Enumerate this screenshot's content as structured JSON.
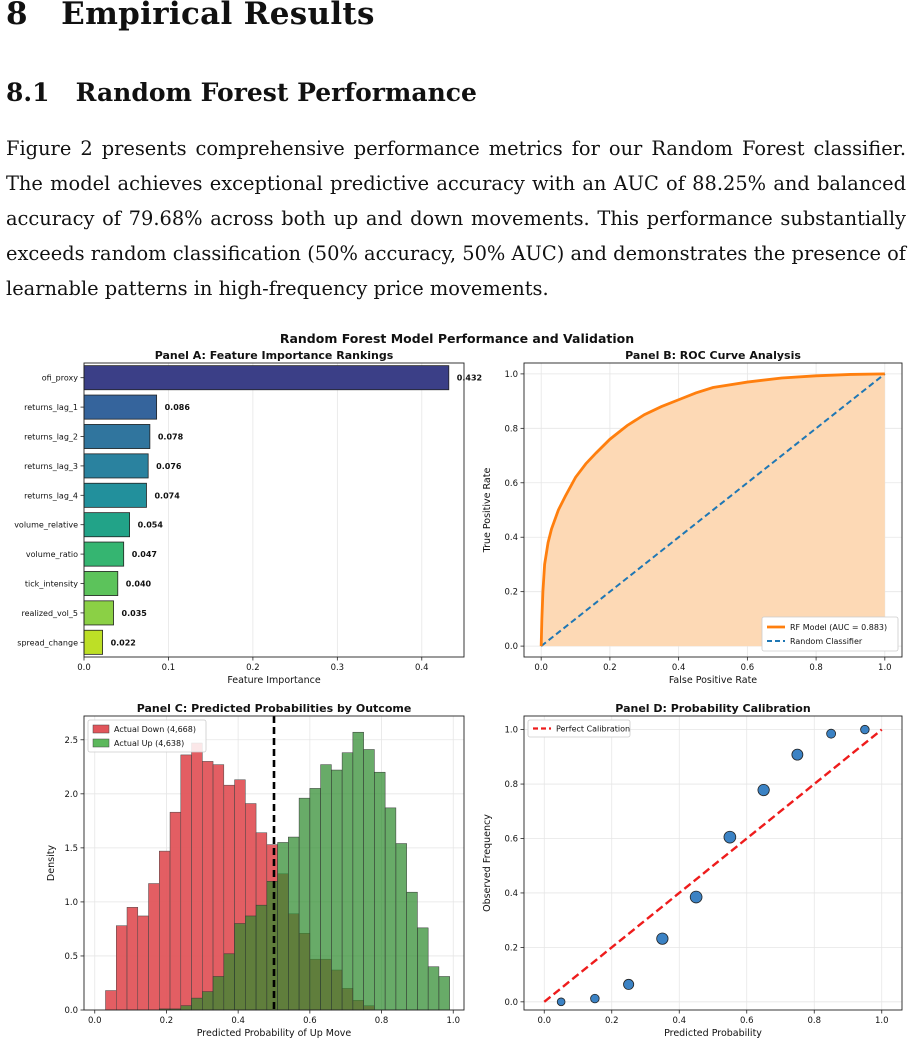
{
  "section": {
    "number": "8",
    "title": "Empirical Results"
  },
  "subsection": {
    "number": "8.1",
    "title": "Random Forest Performance"
  },
  "paragraph": "Figure 2 presents comprehensive performance metrics for our Random Forest classifier. The model achieves exceptional predictive accuracy with an AUC of 88.25% and balanced accuracy of 79.68% across both up and down movements. This performance substantially exceeds random classification (50% accuracy, 50% AUC) and demonstrates the presence of learnable patterns in high-frequency price movements.",
  "figure": {
    "suptitle": "Random Forest Model Performance and Validation"
  },
  "chart_data": [
    {
      "type": "bar",
      "orientation": "horizontal",
      "title": "Panel A: Feature Importance Rankings",
      "xlabel": "Feature Importance",
      "ylabel": "",
      "xlim": [
        0,
        0.45
      ],
      "xticks": [
        0.0,
        0.1,
        0.2,
        0.3,
        0.4
      ],
      "grid": true,
      "categories": [
        "ofi_proxy",
        "returns_lag_1",
        "returns_lag_2",
        "returns_lag_3",
        "returns_lag_4",
        "volume_relative",
        "volume_ratio",
        "tick_intensity",
        "realized_vol_5",
        "spread_change"
      ],
      "values": [
        0.432,
        0.086,
        0.078,
        0.076,
        0.074,
        0.054,
        0.047,
        0.04,
        0.035,
        0.022
      ],
      "value_labels": [
        "0.432",
        "0.086",
        "0.078",
        "0.076",
        "0.074",
        "0.054",
        "0.047",
        "0.040",
        "0.035",
        "0.022"
      ],
      "colors": [
        "#3b3f87",
        "#35649c",
        "#30759e",
        "#2a829f",
        "#22909c",
        "#22a388",
        "#35b571",
        "#5cc35b",
        "#8bd045",
        "#bddf26"
      ]
    },
    {
      "type": "line",
      "title": "Panel B: ROC Curve Analysis",
      "xlabel": "False Positive Rate",
      "ylabel": "True Positive Rate",
      "xlim": [
        0,
        1
      ],
      "ylim": [
        0,
        1
      ],
      "xticks": [
        0.0,
        0.2,
        0.4,
        0.6,
        0.8,
        1.0
      ],
      "yticks": [
        0.0,
        0.2,
        0.4,
        0.6,
        0.8,
        1.0
      ],
      "grid": true,
      "legend_position": "lower-right",
      "series": [
        {
          "name": "RF Model (AUC = 0.883)",
          "color": "#ff7f0e",
          "style": "solid",
          "fill": "#fdd9b5",
          "x": [
            0,
            0.002,
            0.005,
            0.01,
            0.02,
            0.03,
            0.05,
            0.07,
            0.1,
            0.13,
            0.16,
            0.2,
            0.25,
            0.3,
            0.35,
            0.4,
            0.45,
            0.5,
            0.6,
            0.7,
            0.8,
            0.9,
            1.0
          ],
          "y": [
            0,
            0.1,
            0.2,
            0.3,
            0.38,
            0.43,
            0.5,
            0.55,
            0.62,
            0.67,
            0.71,
            0.76,
            0.81,
            0.85,
            0.88,
            0.905,
            0.93,
            0.95,
            0.97,
            0.985,
            0.993,
            0.998,
            1.0
          ]
        },
        {
          "name": "Random Classifier",
          "color": "#1f77b4",
          "style": "dashed",
          "x": [
            0,
            1
          ],
          "y": [
            0,
            1
          ]
        }
      ]
    },
    {
      "type": "histogram",
      "title": "Panel C: Predicted Probabilities by Outcome",
      "xlabel": "Predicted Probability of Up Move",
      "ylabel": "Density",
      "xlim": [
        -0.03,
        1.03
      ],
      "ylim": [
        0,
        2.72
      ],
      "xticks": [
        0.0,
        0.2,
        0.4,
        0.6,
        0.8,
        1.0
      ],
      "yticks": [
        0.0,
        0.5,
        1.0,
        1.5,
        2.0,
        2.5
      ],
      "grid": true,
      "legend_position": "top-left",
      "bin_edges": [
        0.03,
        0.06,
        0.09,
        0.12,
        0.15,
        0.18,
        0.21,
        0.24,
        0.27,
        0.3,
        0.33,
        0.36,
        0.39,
        0.42,
        0.45,
        0.48,
        0.51,
        0.54,
        0.57,
        0.6,
        0.63,
        0.66,
        0.69,
        0.72,
        0.75,
        0.78,
        0.81,
        0.84,
        0.87,
        0.9,
        0.93,
        0.96,
        0.99
      ],
      "threshold": 0.5,
      "series": [
        {
          "name": "Actual Down (4,668)",
          "color": "#e1555b",
          "values": [
            0.18,
            0.78,
            0.95,
            0.87,
            1.17,
            1.47,
            1.83,
            2.36,
            2.47,
            2.3,
            2.27,
            2.08,
            2.13,
            1.91,
            1.64,
            1.53,
            1.26,
            0.89,
            0.71,
            0.47,
            0.47,
            0.37,
            0.2,
            0.09,
            0.04,
            0,
            0,
            0,
            0,
            0,
            0,
            0
          ]
        },
        {
          "name": "Actual Up (4,638)",
          "color": "#5cb85c",
          "values": [
            0,
            0,
            0,
            0,
            0,
            0.01,
            0.01,
            0.04,
            0.11,
            0.17,
            0.31,
            0.52,
            0.8,
            0.87,
            0.97,
            1.19,
            1.55,
            1.6,
            1.96,
            2.05,
            2.27,
            2.22,
            2.38,
            2.57,
            2.41,
            2.2,
            1.87,
            1.54,
            1.09,
            0.76,
            0.4,
            0.31
          ]
        }
      ]
    },
    {
      "type": "scatter",
      "title": "Panel D: Probability Calibration",
      "xlabel": "Predicted Probability",
      "ylabel": "Observed Frequency",
      "xlim": [
        -0.06,
        1.06
      ],
      "ylim": [
        -0.03,
        1.05
      ],
      "xticks": [
        0.0,
        0.2,
        0.4,
        0.6,
        0.8,
        1.0
      ],
      "yticks": [
        0.0,
        0.2,
        0.4,
        0.6,
        0.8,
        1.0
      ],
      "grid": true,
      "legend_position": "top-left",
      "points": {
        "color": "#3b82c4",
        "x": [
          0.05,
          0.15,
          0.25,
          0.35,
          0.45,
          0.55,
          0.65,
          0.75,
          0.85,
          0.95
        ],
        "y": [
          0.0,
          0.012,
          0.064,
          0.232,
          0.385,
          0.605,
          0.778,
          0.908,
          0.985,
          1.0
        ],
        "relative_size": [
          0.35,
          0.45,
          0.65,
          0.8,
          0.85,
          0.85,
          0.8,
          0.75,
          0.5,
          0.45
        ]
      },
      "series": [
        {
          "name": "Perfect Calibration",
          "color": "#ee1c1c",
          "style": "dashed",
          "x": [
            0,
            1
          ],
          "y": [
            0,
            1
          ]
        }
      ]
    }
  ]
}
